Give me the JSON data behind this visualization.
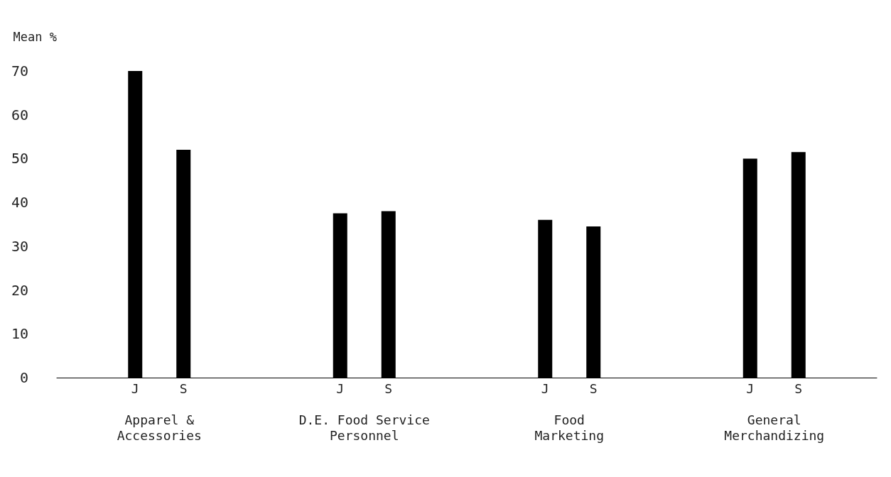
{
  "chart_data": {
    "type": "bar",
    "ylabel": "Mean %",
    "categories": [
      "Apparel &\nAccessories",
      "D.E. Food Service\nPersonnel",
      "Food\nMarketing",
      "General\nMerchandizing"
    ],
    "series": [
      {
        "name": "J",
        "color": "#000000",
        "values": [
          70,
          37.5,
          36,
          50
        ]
      },
      {
        "name": "S",
        "color": "#000000",
        "values": [
          52,
          38,
          34.5,
          51.5
        ]
      }
    ],
    "ylim": [
      0,
      70
    ],
    "yticks": [
      0,
      10,
      20,
      30,
      40,
      50,
      60,
      70
    ],
    "grid": false,
    "legend": false
  }
}
